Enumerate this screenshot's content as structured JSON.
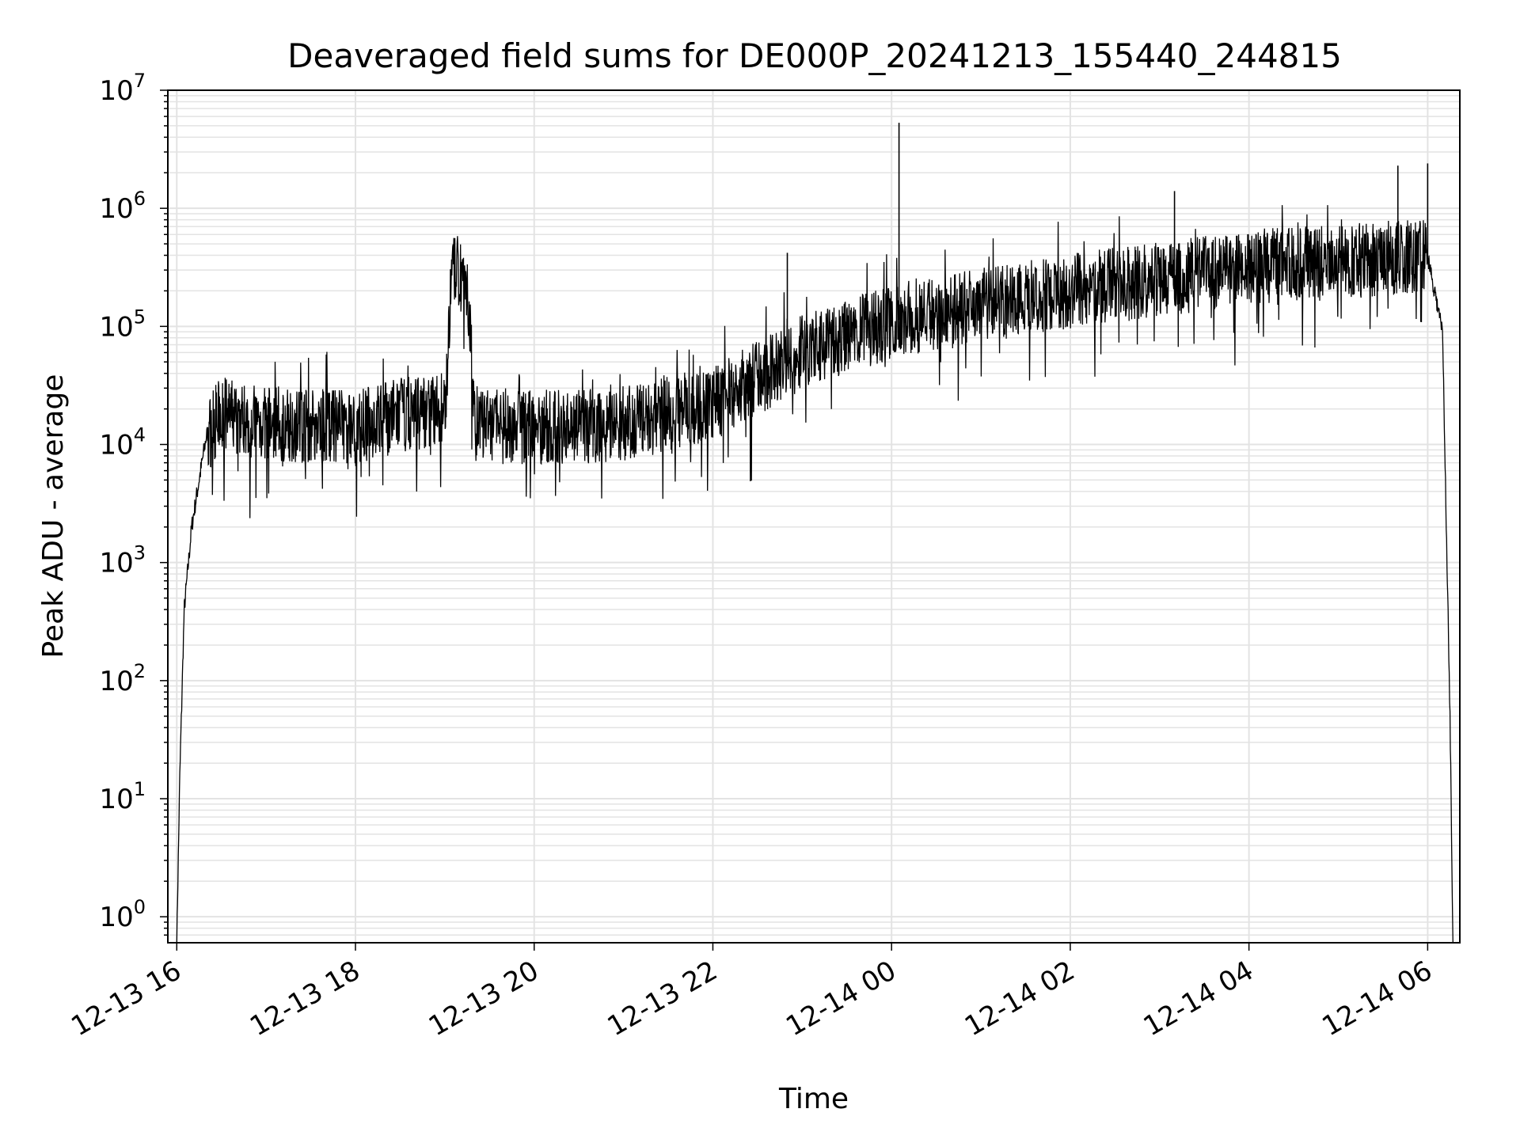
{
  "chart_data": {
    "type": "line",
    "title": "Deaveraged field sums for DE000P_20241213_155440_244815",
    "xlabel": "Time",
    "ylabel": "Peak ADU - average",
    "x_axis": {
      "kind": "time",
      "range_hours_from_1213_00": [
        15.9,
        30.36
      ],
      "ticks": [
        {
          "label": "12-13 16",
          "hour": 16
        },
        {
          "label": "12-13 18",
          "hour": 18
        },
        {
          "label": "12-13 20",
          "hour": 20
        },
        {
          "label": "12-13 22",
          "hour": 22
        },
        {
          "label": "12-14 00",
          "hour": 24
        },
        {
          "label": "12-14 02",
          "hour": 26
        },
        {
          "label": "12-14 04",
          "hour": 28
        },
        {
          "label": "12-14 06",
          "hour": 30
        }
      ]
    },
    "y_axis": {
      "scale": "log",
      "range_log10": [
        -0.22,
        7.0
      ],
      "ticks": [
        {
          "base": "10",
          "exp": "0",
          "value": 1
        },
        {
          "base": "10",
          "exp": "1",
          "value": 10
        },
        {
          "base": "10",
          "exp": "2",
          "value": 100
        },
        {
          "base": "10",
          "exp": "3",
          "value": 1000
        },
        {
          "base": "10",
          "exp": "4",
          "value": 10000
        },
        {
          "base": "10",
          "exp": "5",
          "value": 100000
        },
        {
          "base": "10",
          "exp": "6",
          "value": 1000000
        },
        {
          "base": "10",
          "exp": "7",
          "value": 10000000
        }
      ]
    },
    "grid": true,
    "series": [
      {
        "color": "#000000",
        "envelope_points": [
          {
            "x": "2024-12-13 16:00",
            "y": 0.6
          },
          {
            "x": "2024-12-13 16:02",
            "y": 15
          },
          {
            "x": "2024-12-13 16:05",
            "y": 400
          },
          {
            "x": "2024-12-13 16:10",
            "y": 2000
          },
          {
            "x": "2024-12-13 16:15",
            "y": 5000
          },
          {
            "x": "2024-12-13 16:20",
            "y": 12000
          },
          {
            "x": "2024-12-13 16:30",
            "y": 18000
          },
          {
            "x": "2024-12-13 17:00",
            "y": 15000
          },
          {
            "x": "2024-12-13 18:00",
            "y": 14000
          },
          {
            "x": "2024-12-13 18:30",
            "y": 18000
          },
          {
            "x": "2024-12-13 19:00",
            "y": 20000
          },
          {
            "x": "2024-12-13 19:05",
            "y": 300000
          },
          {
            "x": "2024-12-13 19:15",
            "y": 250000
          },
          {
            "x": "2024-12-13 19:20",
            "y": 15000
          },
          {
            "x": "2024-12-13 20:00",
            "y": 14000
          },
          {
            "x": "2024-12-13 21:00",
            "y": 15000
          },
          {
            "x": "2024-12-13 22:00",
            "y": 22000
          },
          {
            "x": "2024-12-13 23:00",
            "y": 60000
          },
          {
            "x": "2024-12-14 00:00",
            "y": 110000
          },
          {
            "x": "2024-12-14 01:00",
            "y": 160000
          },
          {
            "x": "2024-12-14 02:00",
            "y": 200000
          },
          {
            "x": "2024-12-14 03:00",
            "y": 250000
          },
          {
            "x": "2024-12-14 04:00",
            "y": 320000
          },
          {
            "x": "2024-12-14 05:00",
            "y": 350000
          },
          {
            "x": "2024-12-14 06:00",
            "y": 400000
          },
          {
            "x": "2024-12-14 06:10",
            "y": 90000
          },
          {
            "x": "2024-12-14 06:15",
            "y": 50
          },
          {
            "x": "2024-12-14 06:17",
            "y": 0.6
          }
        ],
        "notable_spikes": [
          {
            "x": "2024-12-14 00:05",
            "y": 5300000
          },
          {
            "x": "2024-12-14 05:40",
            "y": 2300000
          },
          {
            "x": "2024-12-14 06:00",
            "y": 2400000
          },
          {
            "x": "2024-12-14 03:10",
            "y": 1400000
          },
          {
            "x": "2024-12-13 22:50",
            "y": 420000
          }
        ]
      }
    ]
  }
}
